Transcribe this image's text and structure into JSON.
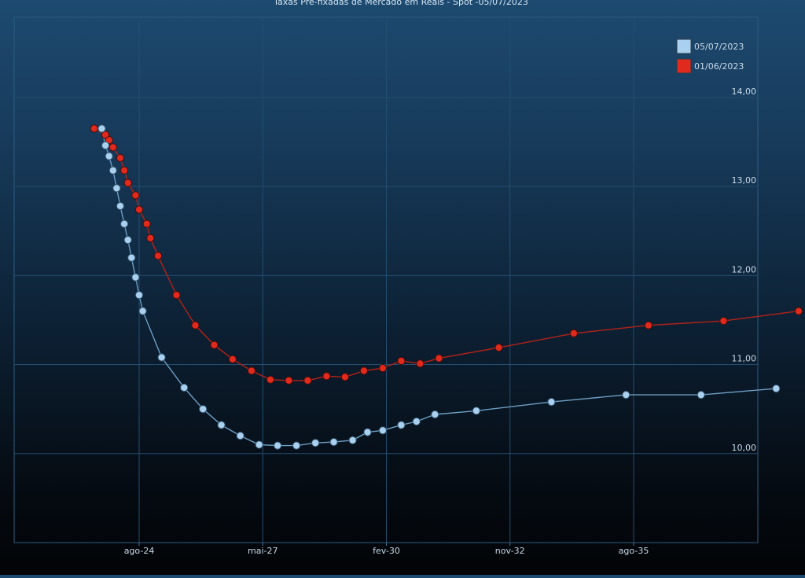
{
  "chart_data": {
    "type": "line",
    "title": "Taxas Pré-fixadas de Mercado em Reais - Spot -05/07/2023",
    "xlabel": "",
    "ylabel": "",
    "x_ticks": [
      "ago-24",
      "mai-27",
      "fev-30",
      "nov-32",
      "ago-35"
    ],
    "y_ticks": [
      "10,00",
      "11,00",
      "12,00",
      "13,00",
      "14,00"
    ],
    "ylim": [
      9.0,
      14.9
    ],
    "grid": true,
    "legend_position": "top-right",
    "series": [
      {
        "name": "05/07/2023",
        "color": "#a9d0ee",
        "points": [
          [
            2023.67,
            13.65
          ],
          [
            2023.75,
            13.46
          ],
          [
            2023.83,
            13.34
          ],
          [
            2023.92,
            13.18
          ],
          [
            2024.0,
            12.98
          ],
          [
            2024.08,
            12.78
          ],
          [
            2024.17,
            12.58
          ],
          [
            2024.25,
            12.4
          ],
          [
            2024.33,
            12.2
          ],
          [
            2024.42,
            11.98
          ],
          [
            2024.5,
            11.78
          ],
          [
            2024.58,
            11.6
          ],
          [
            2025.0,
            11.08
          ],
          [
            2025.5,
            10.74
          ],
          [
            2025.92,
            10.5
          ],
          [
            2026.33,
            10.32
          ],
          [
            2026.75,
            10.2
          ],
          [
            2027.17,
            10.1
          ],
          [
            2027.58,
            10.09
          ],
          [
            2028.0,
            10.09
          ],
          [
            2028.42,
            10.12
          ],
          [
            2028.83,
            10.13
          ],
          [
            2029.25,
            10.15
          ],
          [
            2029.58,
            10.24
          ],
          [
            2029.92,
            10.26
          ],
          [
            2030.33,
            10.32
          ],
          [
            2030.67,
            10.36
          ],
          [
            2031.08,
            10.44
          ],
          [
            2032.0,
            10.48
          ],
          [
            2033.67,
            10.58
          ],
          [
            2035.33,
            10.66
          ],
          [
            2037.0,
            10.66
          ],
          [
            2038.67,
            10.73
          ]
        ]
      },
      {
        "name": "01/06/2023",
        "color": "#e02a1e",
        "points": [
          [
            2023.5,
            13.65
          ],
          [
            2023.75,
            13.58
          ],
          [
            2023.83,
            13.52
          ],
          [
            2023.92,
            13.44
          ],
          [
            2024.08,
            13.32
          ],
          [
            2024.17,
            13.18
          ],
          [
            2024.25,
            13.04
          ],
          [
            2024.42,
            12.9
          ],
          [
            2024.5,
            12.74
          ],
          [
            2024.67,
            12.58
          ],
          [
            2024.75,
            12.42
          ],
          [
            2024.92,
            12.22
          ],
          [
            2025.33,
            11.78
          ],
          [
            2025.75,
            11.44
          ],
          [
            2026.17,
            11.22
          ],
          [
            2026.58,
            11.06
          ],
          [
            2027.0,
            10.93
          ],
          [
            2027.42,
            10.83
          ],
          [
            2027.83,
            10.82
          ],
          [
            2028.25,
            10.82
          ],
          [
            2028.67,
            10.87
          ],
          [
            2029.08,
            10.86
          ],
          [
            2029.5,
            10.93
          ],
          [
            2029.92,
            10.96
          ],
          [
            2030.33,
            11.04
          ],
          [
            2030.75,
            11.01
          ],
          [
            2031.17,
            11.07
          ],
          [
            2032.5,
            11.19
          ],
          [
            2034.17,
            11.35
          ],
          [
            2035.83,
            11.44
          ],
          [
            2037.5,
            11.49
          ],
          [
            2039.17,
            11.6
          ]
        ]
      }
    ]
  }
}
